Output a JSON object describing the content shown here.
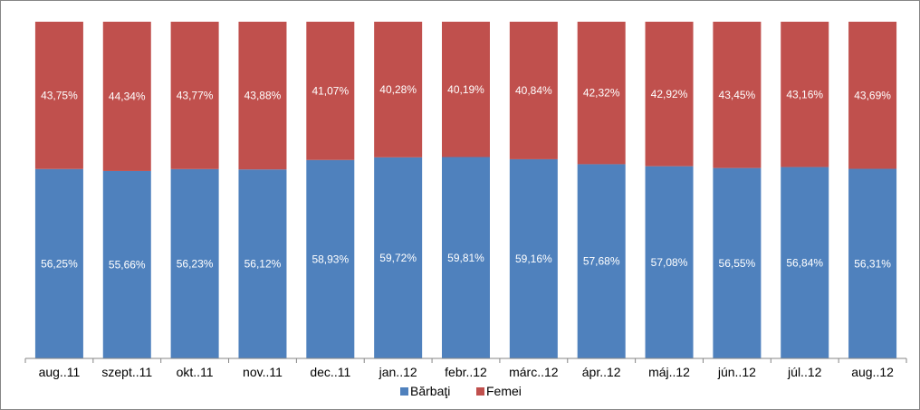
{
  "chart_data": {
    "type": "bar",
    "stacked": true,
    "percent": true,
    "categories": [
      "aug..11",
      "szept..11",
      "okt..11",
      "nov..11",
      "dec..11",
      "jan..12",
      "febr..12",
      "márc..12",
      "ápr..12",
      "máj..12",
      "jún..12",
      "júl..12",
      "aug..12"
    ],
    "series": [
      {
        "name": "Bărbaţi",
        "color": "#4f81bd",
        "values": [
          56.25,
          55.66,
          56.23,
          56.12,
          58.93,
          59.72,
          59.81,
          59.16,
          57.68,
          57.08,
          56.55,
          56.84,
          56.31
        ],
        "labels": [
          "56,25%",
          "55,66%",
          "56,23%",
          "56,12%",
          "58,93%",
          "59,72%",
          "59,81%",
          "59,16%",
          "57,68%",
          "57,08%",
          "56,55%",
          "56,84%",
          "56,31%"
        ]
      },
      {
        "name": "Femei",
        "color": "#c0504d",
        "values": [
          43.75,
          44.34,
          43.77,
          43.88,
          41.07,
          40.28,
          40.19,
          40.84,
          42.32,
          42.92,
          43.45,
          43.16,
          43.69
        ],
        "labels": [
          "43,75%",
          "44,34%",
          "43,77%",
          "43,88%",
          "41,07%",
          "40,28%",
          "40,19%",
          "40,84%",
          "42,32%",
          "42,92%",
          "43,45%",
          "43,16%",
          "43,69%"
        ]
      }
    ],
    "ylim": [
      0,
      100
    ],
    "legend_position": "bottom",
    "grid": false
  }
}
